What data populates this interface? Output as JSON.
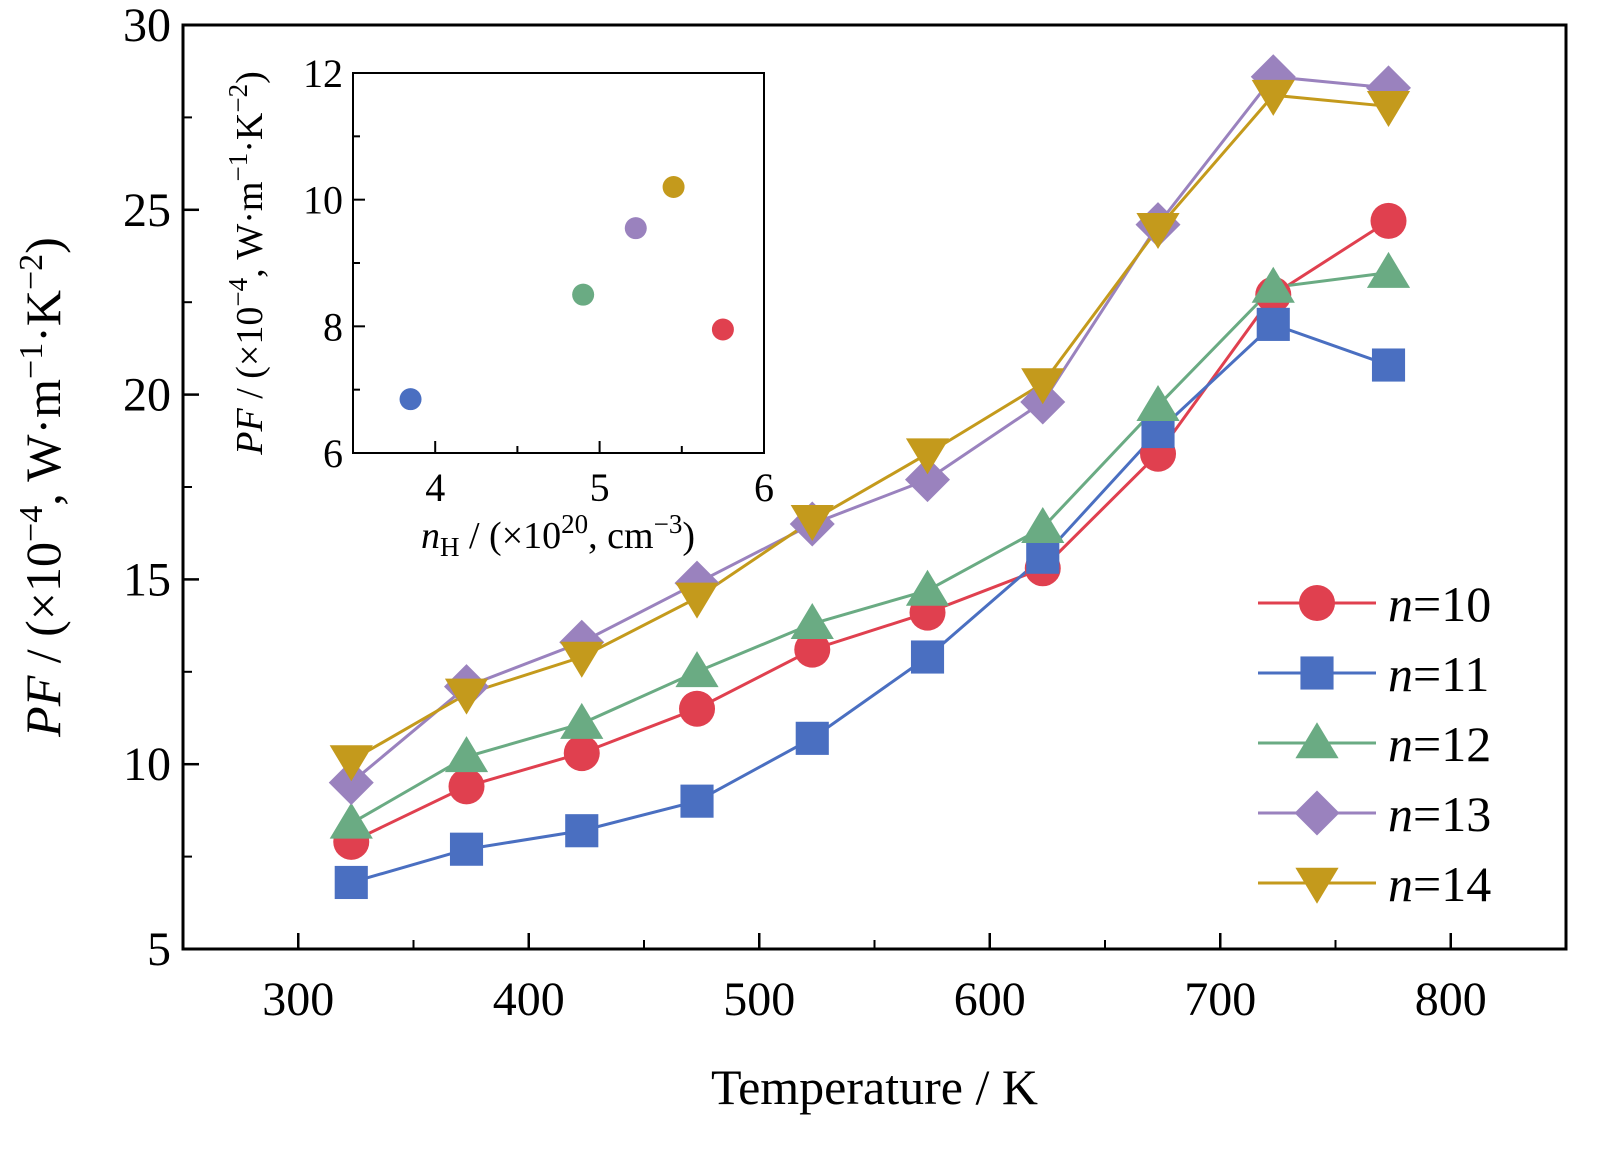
{
  "chart_data": [
    {
      "type": "line",
      "xlabel": "Temperature / K",
      "ylabel_parts": [
        "PF",
        " / (×10",
        "−4",
        ", W·m",
        "−1",
        "·K",
        "−2",
        ")"
      ],
      "xlim": [
        250,
        850
      ],
      "ylim": [
        5,
        30
      ],
      "x_ticks": [
        300,
        400,
        500,
        600,
        700,
        800
      ],
      "y_ticks": [
        5,
        10,
        15,
        20,
        25,
        30
      ],
      "x": [
        323,
        373,
        423,
        473,
        523,
        573,
        623,
        673,
        723,
        773
      ],
      "series": [
        {
          "name": "n=10",
          "label_prefix": "n",
          "label_suffix": "=10",
          "color": "#e0404f",
          "marker": "circle",
          "values": [
            7.9,
            9.4,
            10.3,
            11.5,
            13.1,
            14.1,
            15.3,
            18.4,
            22.7,
            24.7
          ]
        },
        {
          "name": "n=11",
          "label_prefix": "n",
          "label_suffix": "=11",
          "color": "#4a6fc1",
          "marker": "square",
          "values": [
            6.8,
            7.7,
            8.2,
            9.0,
            10.7,
            12.9,
            15.6,
            19.0,
            21.9,
            20.8
          ]
        },
        {
          "name": "n=12",
          "label_prefix": "n",
          "label_suffix": "=12",
          "color": "#6aab83",
          "marker": "triangle-up",
          "values": [
            8.4,
            10.2,
            11.1,
            12.5,
            13.8,
            14.7,
            16.4,
            19.7,
            22.9,
            23.3
          ]
        },
        {
          "name": "n=13",
          "label_prefix": "n",
          "label_suffix": "=13",
          "color": "#9a82be",
          "marker": "diamond",
          "values": [
            9.5,
            12.1,
            13.3,
            14.9,
            16.5,
            17.7,
            19.8,
            24.6,
            28.6,
            28.3
          ]
        },
        {
          "name": "n=14",
          "label_prefix": "n",
          "label_suffix": "=14",
          "color": "#c49a1c",
          "marker": "triangle-down",
          "values": [
            10.1,
            11.9,
            12.9,
            14.5,
            16.6,
            18.4,
            20.3,
            24.5,
            28.1,
            27.8
          ]
        }
      ],
      "legend": "right"
    },
    {
      "type": "scatter",
      "role": "inset",
      "xlabel_parts": [
        "n",
        "H",
        " / (×10",
        "20",
        ", cm",
        "−3",
        ")"
      ],
      "ylabel_parts": [
        "PF",
        " / (×10",
        "−4",
        ", W·m",
        "−1",
        "·K",
        "−2",
        ")"
      ],
      "xlim": [
        3.5,
        6
      ],
      "ylim": [
        6,
        12
      ],
      "x_ticks": [
        4,
        5,
        6
      ],
      "y_ticks": [
        6,
        8,
        10,
        12
      ],
      "points": [
        {
          "x": 3.85,
          "y": 6.85,
          "color": "#4a6fc1"
        },
        {
          "x": 4.9,
          "y": 8.5,
          "color": "#6aab83"
        },
        {
          "x": 5.22,
          "y": 9.55,
          "color": "#9a82be"
        },
        {
          "x": 5.45,
          "y": 10.2,
          "color": "#c49a1c"
        },
        {
          "x": 5.75,
          "y": 7.95,
          "color": "#e0404f"
        }
      ]
    }
  ]
}
